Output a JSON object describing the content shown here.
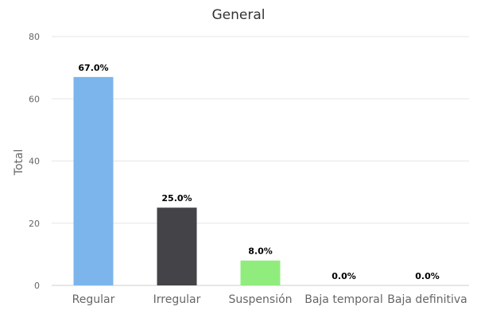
{
  "chart_data": {
    "type": "bar",
    "title": "General",
    "xlabel": "",
    "ylabel": "Total",
    "ylim": [
      0,
      80
    ],
    "yticks": [
      0,
      20,
      40,
      60,
      80
    ],
    "grid": true,
    "categories": [
      "Regular",
      "Irregular",
      "Suspensión",
      "Baja temporal",
      "Baja definitiva"
    ],
    "values": [
      67,
      25,
      8,
      0,
      0
    ],
    "data_labels": [
      "67.0%",
      "25.0%",
      "8.0%",
      "0.0%",
      "0.0%"
    ],
    "colors": [
      "#7cb5ec",
      "#434348",
      "#90ed7d",
      "#f7a35c",
      "#8085e9"
    ]
  }
}
